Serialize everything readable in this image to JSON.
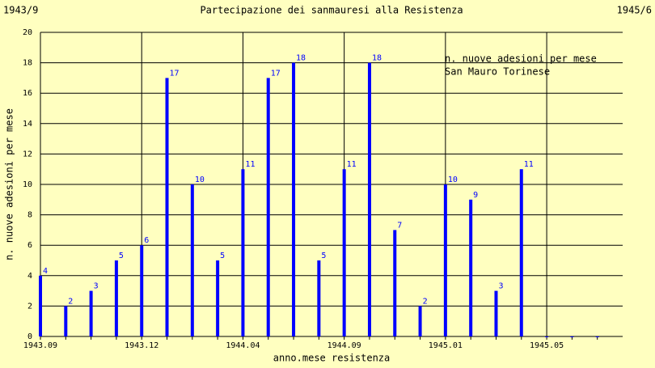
{
  "chart_data": {
    "type": "bar",
    "title": "Partecipazione dei sanmauresi alla Resistenza",
    "corner_left": "1943/9",
    "corner_right": "1945/6",
    "annotation": [
      "n. nuove adesioni per mese",
      "San Mauro Torinese"
    ],
    "x_label": "anno.mese resistenza",
    "y_label": "n. nuove adesioni per mese",
    "categories": [
      "1943.09",
      null,
      null,
      null,
      "1943.12",
      null,
      null,
      null,
      "1944.04",
      null,
      null,
      null,
      "1944.09",
      null,
      null,
      null,
      "1945.01",
      null,
      null,
      null,
      "1945.05",
      null,
      null
    ],
    "values": [
      4,
      2,
      3,
      5,
      6,
      17,
      10,
      5,
      11,
      17,
      18,
      5,
      11,
      18,
      7,
      2,
      10,
      9,
      3,
      11,
      0,
      0,
      0
    ],
    "color": "#0000ff",
    "ylim": [
      0,
      20
    ],
    "yticks": [
      0,
      2,
      4,
      6,
      8,
      10,
      12,
      14,
      16,
      18,
      20
    ],
    "grid": true
  }
}
